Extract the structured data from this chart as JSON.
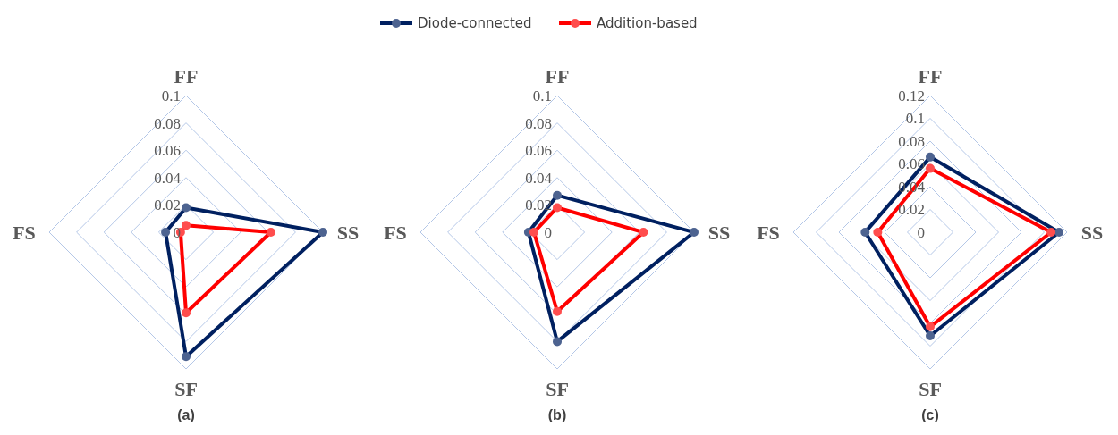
{
  "chart_data": [
    {
      "type": "radar",
      "title": "(a)",
      "categories": [
        "FF",
        "SS",
        "SF",
        "FS"
      ],
      "ylim": [
        0,
        0.1
      ],
      "yticks": [
        0,
        0.02,
        0.04,
        0.06,
        0.08,
        0.1
      ],
      "grid": true,
      "legend": "top",
      "marker": "circle",
      "series": [
        {
          "name": "Diode-connected",
          "color": "#002060",
          "values": [
            0.018,
            0.1,
            0.091,
            0.015
          ]
        },
        {
          "name": "Addition-based",
          "color": "#ff0000",
          "values": [
            0.005,
            0.062,
            0.059,
            0.004
          ]
        }
      ]
    },
    {
      "type": "radar",
      "title": "(b)",
      "categories": [
        "FF",
        "SS",
        "SF",
        "FS"
      ],
      "ylim": [
        0,
        0.1
      ],
      "yticks": [
        0,
        0.02,
        0.04,
        0.06,
        0.08,
        0.1
      ],
      "grid": true,
      "marker": "circle",
      "series": [
        {
          "color": "#002060",
          "values": [
            0.027,
            0.1,
            0.08,
            0.021
          ]
        },
        {
          "color": "#ff0000",
          "values": [
            0.018,
            0.063,
            0.058,
            0.017
          ]
        }
      ]
    },
    {
      "type": "radar",
      "title": "(c)",
      "categories": [
        "FF",
        "SS",
        "SF",
        "FS"
      ],
      "ylim": [
        0,
        0.12
      ],
      "yticks": [
        0,
        0.02,
        0.04,
        0.06,
        0.08,
        0.1,
        0.12
      ],
      "grid": true,
      "marker": "circle",
      "series": [
        {
          "color": "#002060",
          "values": [
            0.066,
            0.113,
            0.091,
            0.057
          ]
        },
        {
          "color": "#ff0000",
          "values": [
            0.056,
            0.106,
            0.083,
            0.046
          ]
        }
      ]
    }
  ]
}
